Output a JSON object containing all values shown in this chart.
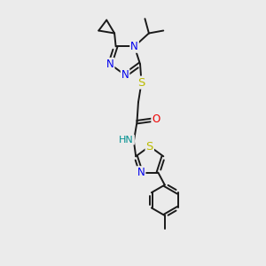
{
  "bg_color": "#ebebeb",
  "bond_color": "#1a1a1a",
  "bond_width": 1.4,
  "atom_colors": {
    "N": "#0000ee",
    "S": "#bbbb00",
    "O": "#ee0000",
    "H": "#009090",
    "C": "#1a1a1a"
  },
  "font_size": 8.5,
  "fig_size": [
    3.0,
    3.0
  ],
  "dpi": 100
}
